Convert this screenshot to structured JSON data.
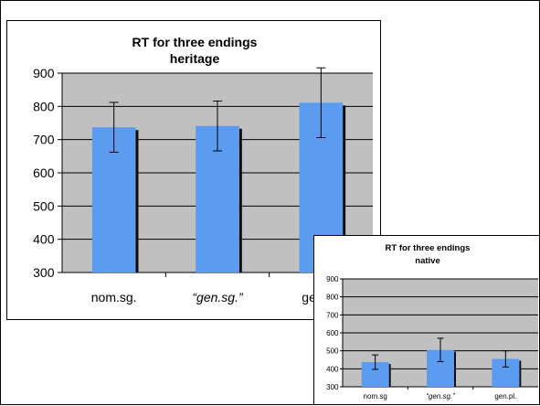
{
  "chart_data": [
    {
      "id": "heritage",
      "type": "bar",
      "title": "RT for three endings",
      "subtitle": "heritage",
      "categories": [
        "nom.sg.",
        "“gen.sg.”",
        "gen.pl."
      ],
      "category_italic": [
        false,
        true,
        false
      ],
      "values": [
        737,
        741,
        811
      ],
      "error": [
        75,
        75,
        105
      ],
      "ylim": [
        300,
        900
      ],
      "yticks": [
        300,
        400,
        500,
        600,
        700,
        800,
        900
      ],
      "grid": true,
      "legend": "none",
      "colors": {
        "bar": "#5b9bf0",
        "bar_shadow": "#0a0a0a",
        "plot_bg": "#c0c0c0",
        "gridline": "#000000",
        "error_bar": "#000000"
      }
    },
    {
      "id": "native",
      "type": "bar",
      "title": "RT for three endings",
      "subtitle": "native",
      "categories": [
        "nom.sg",
        "“gen.sg.”",
        "gen.pl."
      ],
      "category_italic": [
        false,
        true,
        false
      ],
      "values": [
        437,
        505,
        455
      ],
      "error": [
        40,
        65,
        45
      ],
      "ylim": [
        300,
        900
      ],
      "yticks": [
        300,
        400,
        500,
        600,
        700,
        800,
        900
      ],
      "grid": true,
      "legend": "none",
      "colors": {
        "bar": "#5b9bf0",
        "bar_shadow": "#0a0a0a",
        "plot_bg": "#c0c0c0",
        "gridline": "#000000",
        "error_bar": "#000000"
      }
    }
  ]
}
